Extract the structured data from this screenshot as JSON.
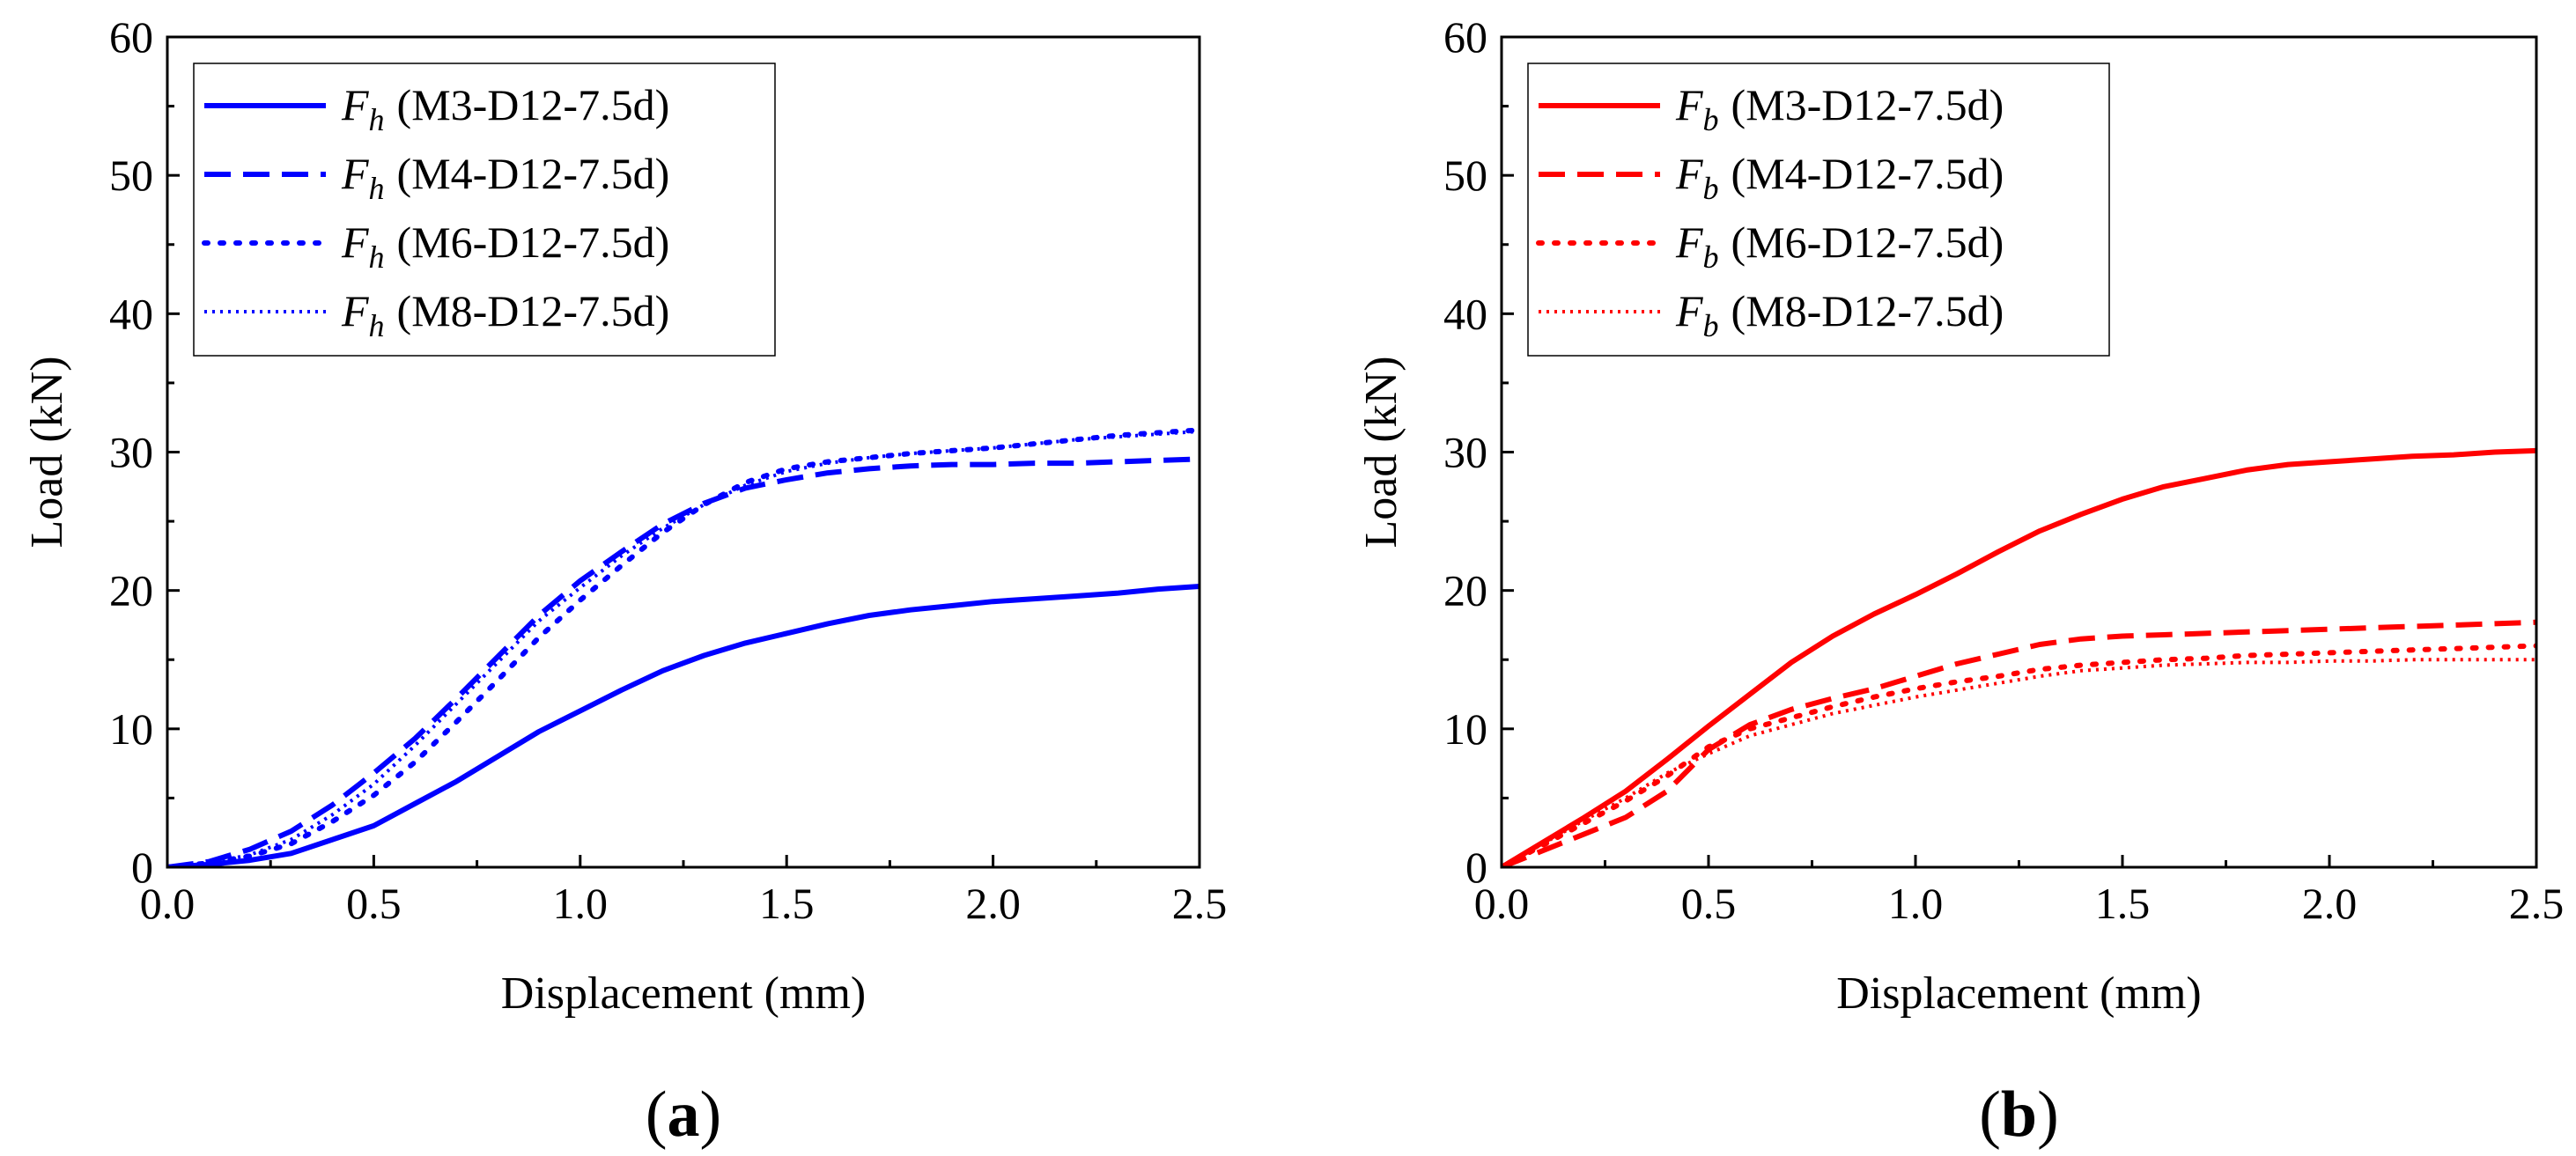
{
  "chart_data": [
    {
      "type": "line",
      "panel_label": "a",
      "title": "",
      "xlabel": "Displacement (mm)",
      "ylabel": "Load (kN)",
      "xlim": [
        0,
        2.5
      ],
      "ylim": [
        0,
        60
      ],
      "xticks": [
        "0.0",
        "0.5",
        "1.0",
        "1.5",
        "2.0",
        "2.5"
      ],
      "yticks": [
        "0",
        "10",
        "20",
        "30",
        "40",
        "50",
        "60"
      ],
      "color": "#0000ff",
      "legend_position": "top-left",
      "series": [
        {
          "name": "(M3-D12-7.5d)",
          "symbol": "F",
          "subscript": "h",
          "line_style": "solid",
          "x": [
            0,
            0.1,
            0.2,
            0.3,
            0.4,
            0.5,
            0.6,
            0.7,
            0.8,
            0.9,
            1.0,
            1.1,
            1.2,
            1.3,
            1.4,
            1.5,
            1.6,
            1.7,
            1.8,
            1.9,
            2.0,
            2.1,
            2.2,
            2.3,
            2.4,
            2.5
          ],
          "y": [
            0,
            0.2,
            0.5,
            1.0,
            2.0,
            3.0,
            4.6,
            6.2,
            8.0,
            9.8,
            11.3,
            12.8,
            14.2,
            15.3,
            16.2,
            16.9,
            17.6,
            18.2,
            18.6,
            18.9,
            19.2,
            19.4,
            19.6,
            19.8,
            20.1,
            20.3
          ]
        },
        {
          "name": "(M4-D12-7.5d)",
          "symbol": "F",
          "subscript": "h",
          "line_style": "dashed",
          "x": [
            0,
            0.1,
            0.2,
            0.3,
            0.4,
            0.5,
            0.6,
            0.7,
            0.8,
            0.9,
            1.0,
            1.1,
            1.2,
            1.3,
            1.4,
            1.5,
            1.6,
            1.7,
            1.8,
            1.9,
            2.0,
            2.1,
            2.2,
            2.3,
            2.4,
            2.5
          ],
          "y": [
            0,
            0.4,
            1.3,
            2.6,
            4.5,
            6.8,
            9.3,
            12.2,
            15.2,
            18.2,
            20.7,
            22.8,
            24.8,
            26.3,
            27.4,
            28.0,
            28.5,
            28.8,
            29.0,
            29.1,
            29.1,
            29.2,
            29.2,
            29.3,
            29.4,
            29.5
          ]
        },
        {
          "name": "(M6-D12-7.5d)",
          "symbol": "F",
          "subscript": "h",
          "line_style": "dotted",
          "x": [
            0,
            0.1,
            0.2,
            0.3,
            0.4,
            0.5,
            0.6,
            0.7,
            0.8,
            0.9,
            1.0,
            1.1,
            1.2,
            1.3,
            1.4,
            1.5,
            1.6,
            1.7,
            1.8,
            1.9,
            2.0,
            2.1,
            2.2,
            2.3,
            2.4,
            2.5
          ],
          "y": [
            0,
            0.3,
            0.8,
            1.7,
            3.3,
            5.2,
            7.6,
            10.5,
            13.5,
            16.6,
            19.3,
            21.8,
            24.2,
            26.2,
            27.8,
            28.8,
            29.3,
            29.6,
            29.9,
            30.1,
            30.3,
            30.6,
            30.9,
            31.2,
            31.4,
            31.6
          ]
        },
        {
          "name": "(M8-D12-7.5d)",
          "symbol": "F",
          "subscript": "h",
          "line_style": "fine-dotted",
          "x": [
            0,
            0.1,
            0.2,
            0.3,
            0.4,
            0.5,
            0.6,
            0.7,
            0.8,
            0.9,
            1.0,
            1.1,
            1.2,
            1.3,
            1.4,
            1.5,
            1.6,
            1.7,
            1.8,
            1.9,
            2.0,
            2.1,
            2.2,
            2.3,
            2.4,
            2.5
          ],
          "y": [
            0,
            0.3,
            0.9,
            2.0,
            3.8,
            6.0,
            8.8,
            11.8,
            14.8,
            17.8,
            20.2,
            22.5,
            24.5,
            26.2,
            27.6,
            28.6,
            29.2,
            29.6,
            29.9,
            30.1,
            30.3,
            30.6,
            30.9,
            31.1,
            31.3,
            31.5
          ]
        }
      ]
    },
    {
      "type": "line",
      "panel_label": "b",
      "title": "",
      "xlabel": "Displacement (mm)",
      "ylabel": "Load (kN)",
      "xlim": [
        0,
        2.5
      ],
      "ylim": [
        0,
        60
      ],
      "xticks": [
        "0.0",
        "0.5",
        "1.0",
        "1.5",
        "2.0",
        "2.5"
      ],
      "yticks": [
        "0",
        "10",
        "20",
        "30",
        "40",
        "50",
        "60"
      ],
      "color": "#ff0000",
      "legend_position": "top-left",
      "series": [
        {
          "name": "(M3-D12-7.5d)",
          "symbol": "F",
          "subscript": "b",
          "line_style": "solid",
          "x": [
            0,
            0.1,
            0.2,
            0.3,
            0.4,
            0.5,
            0.6,
            0.7,
            0.8,
            0.9,
            1.0,
            1.1,
            1.2,
            1.3,
            1.4,
            1.5,
            1.6,
            1.7,
            1.8,
            1.9,
            2.0,
            2.1,
            2.2,
            2.3,
            2.4,
            2.5
          ],
          "y": [
            0,
            1.8,
            3.6,
            5.5,
            7.8,
            10.2,
            12.5,
            14.8,
            16.7,
            18.3,
            19.7,
            21.2,
            22.8,
            24.3,
            25.5,
            26.6,
            27.5,
            28.1,
            28.7,
            29.1,
            29.3,
            29.5,
            29.7,
            29.8,
            30.0,
            30.1
          ]
        },
        {
          "name": "(M4-D12-7.5d)",
          "symbol": "F",
          "subscript": "b",
          "line_style": "dashed",
          "x": [
            0,
            0.1,
            0.2,
            0.3,
            0.4,
            0.5,
            0.6,
            0.7,
            0.8,
            0.9,
            1.0,
            1.1,
            1.2,
            1.3,
            1.4,
            1.5,
            1.6,
            1.7,
            1.8,
            1.9,
            2.0,
            2.1,
            2.2,
            2.3,
            2.4,
            2.5
          ],
          "y": [
            0,
            1.2,
            2.4,
            3.6,
            5.5,
            8.5,
            10.3,
            11.4,
            12.2,
            12.9,
            13.8,
            14.7,
            15.4,
            16.1,
            16.5,
            16.7,
            16.8,
            16.9,
            17.0,
            17.1,
            17.2,
            17.3,
            17.4,
            17.5,
            17.6,
            17.7
          ]
        },
        {
          "name": "(M6-D12-7.5d)",
          "symbol": "F",
          "subscript": "b",
          "line_style": "dotted",
          "x": [
            0,
            0.1,
            0.2,
            0.3,
            0.4,
            0.5,
            0.6,
            0.7,
            0.8,
            0.9,
            1.0,
            1.1,
            1.2,
            1.3,
            1.4,
            1.5,
            1.6,
            1.7,
            1.8,
            1.9,
            2.0,
            2.1,
            2.2,
            2.3,
            2.4,
            2.5
          ],
          "y": [
            0,
            1.6,
            3.2,
            4.8,
            6.6,
            8.7,
            10.0,
            10.8,
            11.6,
            12.3,
            12.9,
            13.4,
            13.8,
            14.3,
            14.6,
            14.8,
            15.0,
            15.1,
            15.3,
            15.4,
            15.5,
            15.6,
            15.7,
            15.8,
            15.9,
            16.0
          ]
        },
        {
          "name": "(M8-D12-7.5d)",
          "symbol": "F",
          "subscript": "b",
          "line_style": "fine-dotted",
          "x": [
            0,
            0.1,
            0.2,
            0.3,
            0.4,
            0.5,
            0.6,
            0.7,
            0.8,
            0.9,
            1.0,
            1.1,
            1.2,
            1.3,
            1.4,
            1.5,
            1.6,
            1.7,
            1.8,
            1.9,
            2.0,
            2.1,
            2.2,
            2.3,
            2.4,
            2.5
          ],
          "y": [
            0,
            1.7,
            3.4,
            5.0,
            6.8,
            8.2,
            9.5,
            10.3,
            11.1,
            11.7,
            12.3,
            12.8,
            13.3,
            13.8,
            14.2,
            14.4,
            14.6,
            14.7,
            14.8,
            14.8,
            14.9,
            14.9,
            15.0,
            15.0,
            15.0,
            15.0
          ]
        }
      ]
    }
  ]
}
